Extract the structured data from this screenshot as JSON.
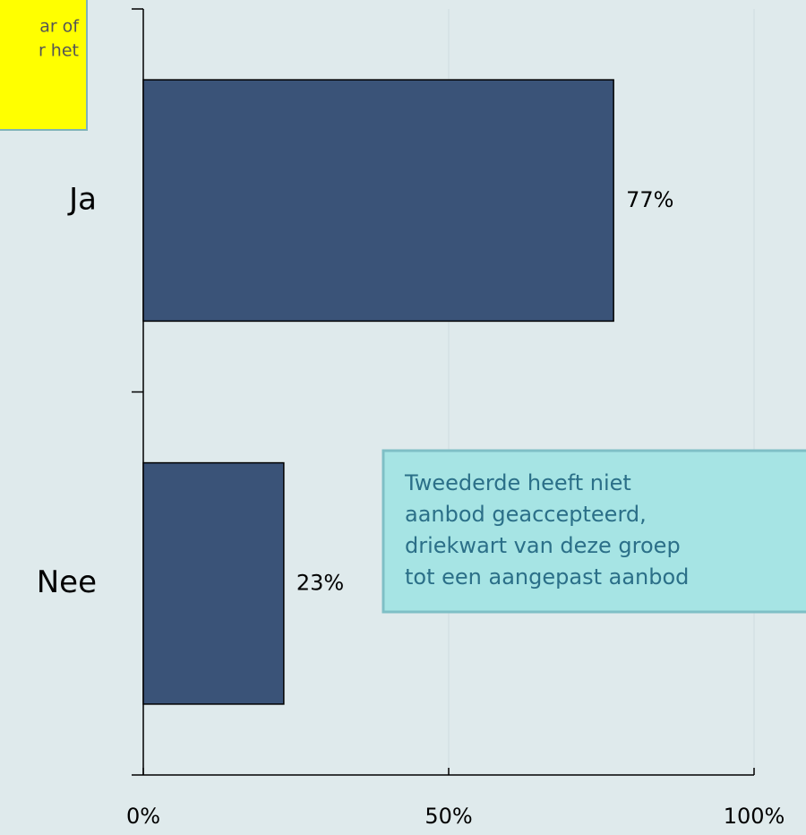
{
  "chart_data": {
    "type": "hbar",
    "categories": [
      "Ja",
      "Nee"
    ],
    "values": [
      77,
      23
    ],
    "value_labels": [
      "77%",
      "23%"
    ],
    "color": "#3a5378",
    "xlim": [
      0,
      100
    ],
    "xticks": [
      {
        "value": 0,
        "label": "0%"
      },
      {
        "value": 50,
        "label": "50%"
      },
      {
        "value": 100,
        "label": "100%"
      }
    ],
    "grid": true,
    "annotations": [
      {
        "lines": [
          "ar of",
          "r het"
        ],
        "color": "#ffff00"
      },
      {
        "lines": [
          "Tweederde heeft niet",
          "aanbod geaccepteerd,",
          "driekwart van deze groep",
          "tot een aangepast aanbod"
        ],
        "color": "#a6e4e4"
      }
    ]
  }
}
